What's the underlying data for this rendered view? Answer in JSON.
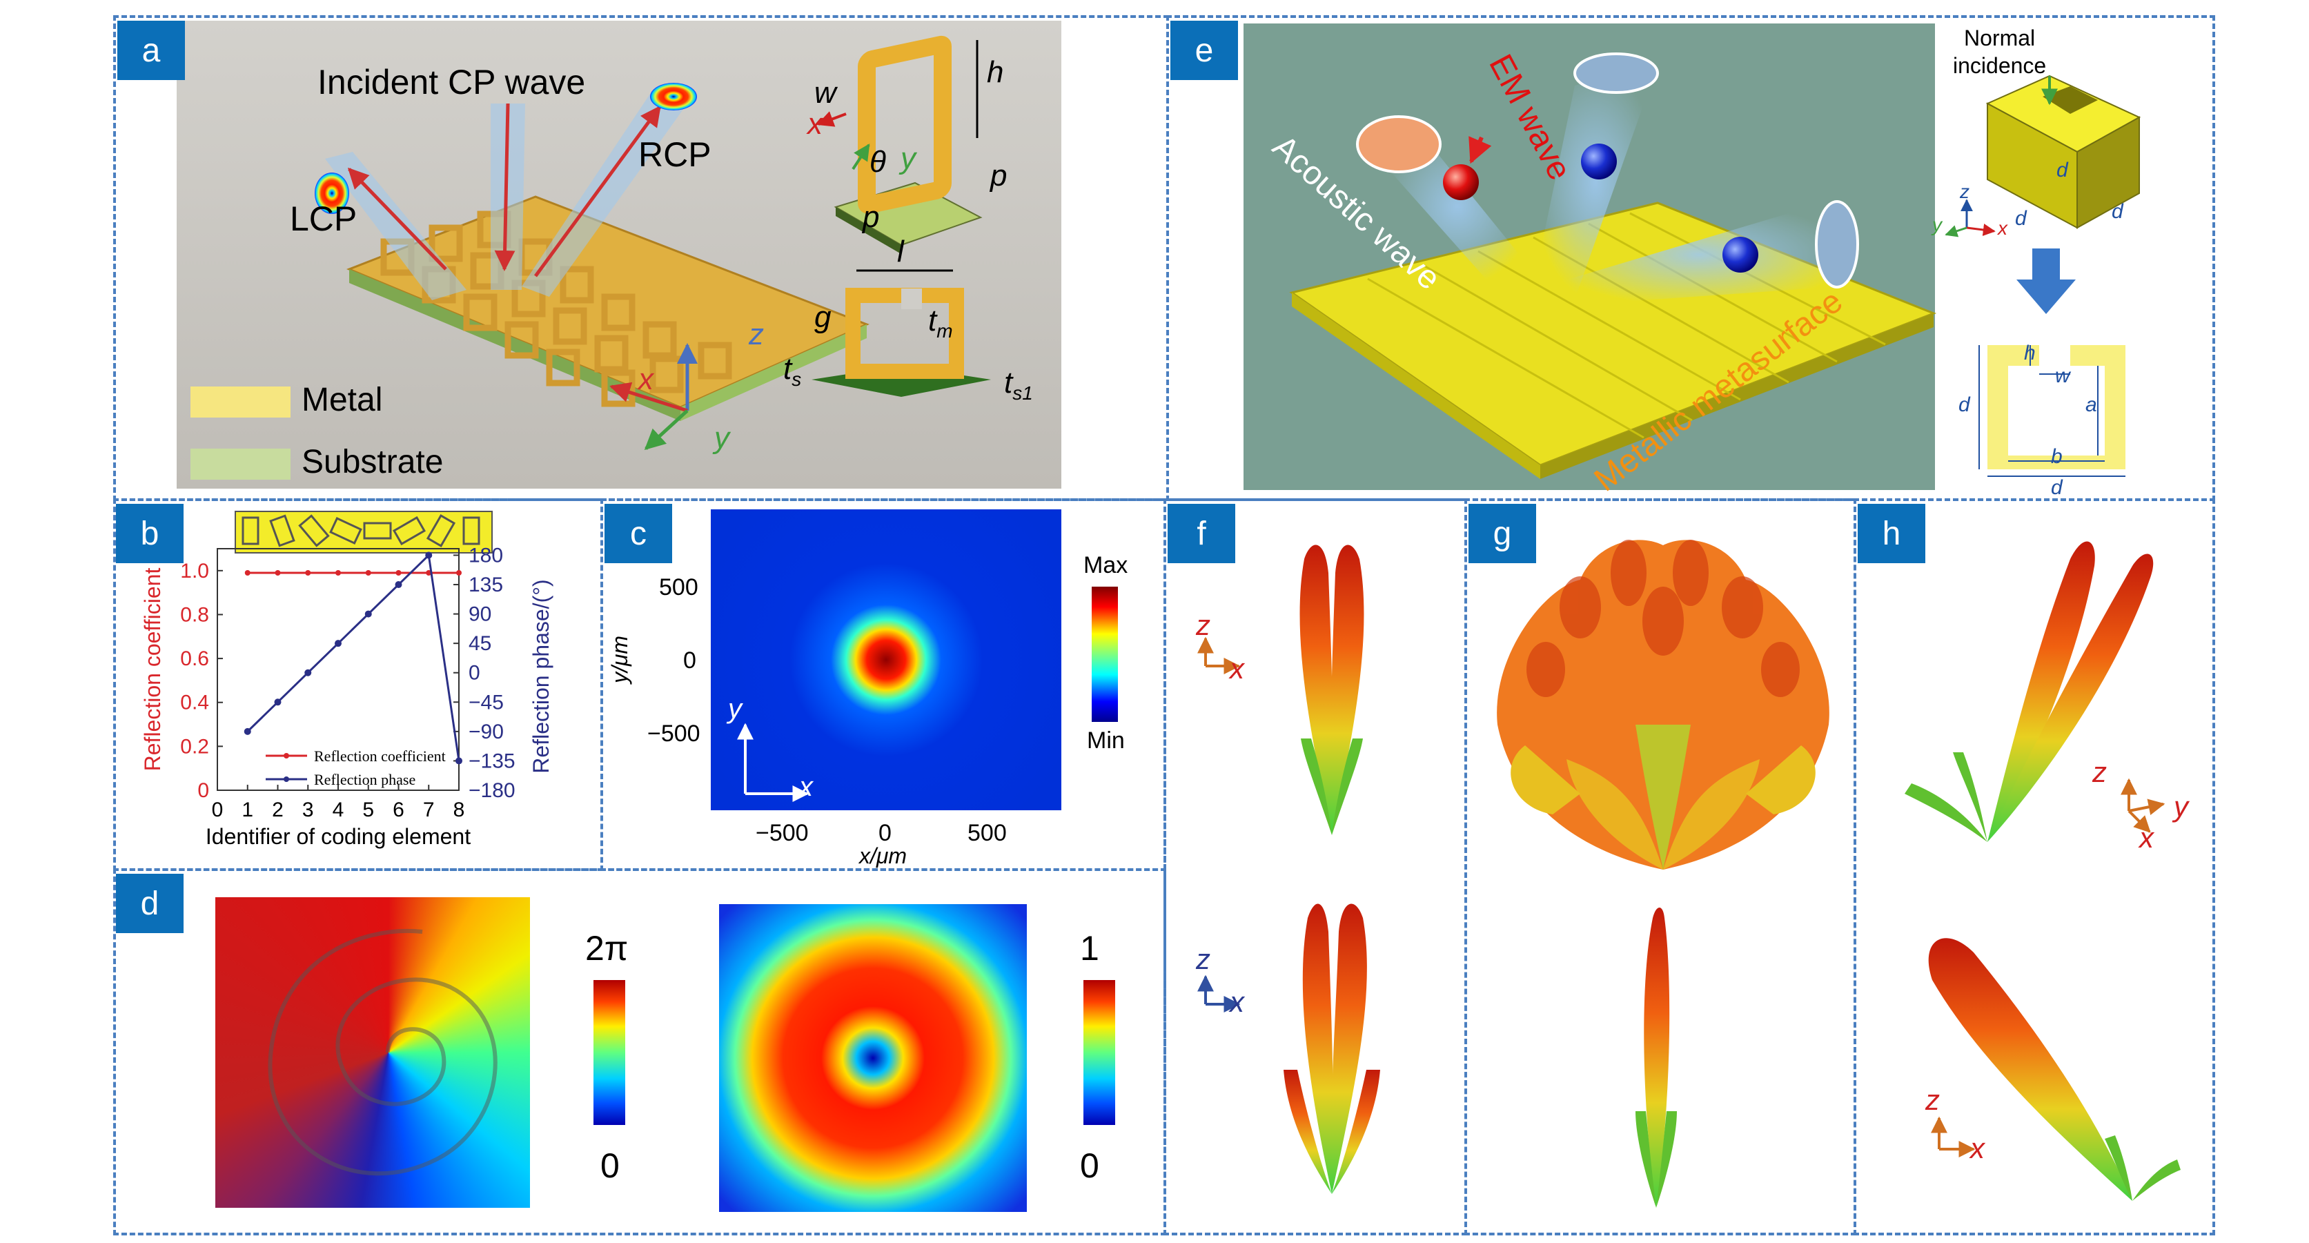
{
  "panel_labels": {
    "a": "a",
    "b": "b",
    "c": "c",
    "d": "d",
    "e": "e",
    "f": "f",
    "g": "g",
    "h": "h"
  },
  "colors": {
    "border": "#4a7fc0",
    "label_bg": "#0b6fb8",
    "coef_red": "#d9262b",
    "phase_blue": "#2a2f86",
    "metal": "#f4e27a",
    "substrate": "#c8dc9e"
  },
  "panel_a": {
    "incident": "Incident CP wave",
    "lcp": "LCP",
    "rcp": "RCP",
    "legend_metal": "Metal",
    "legend_substrate": "Substrate",
    "dims": {
      "w": "w",
      "h": "h",
      "x": "x",
      "theta": "θ",
      "y": "y",
      "p1": "p",
      "p2": "p",
      "l": "l",
      "g": "g",
      "tm": "t",
      "tm_sub": "m",
      "ts": "t",
      "ts_sub": "s",
      "ts1": "t",
      "ts1_sub": "s1"
    },
    "axes": {
      "z": "z",
      "x": "x",
      "y": "y"
    }
  },
  "panel_b": {
    "chart_data": {
      "type": "line",
      "xlabel": "Identifier of coding element",
      "ylabel_left": "Reflection coefficient",
      "ylabel_right": "Reflection phase/(°)",
      "x": [
        1,
        2,
        3,
        4,
        5,
        6,
        7,
        8
      ],
      "series": [
        {
          "name": "Reflection coefficient",
          "axis": "left",
          "values": [
            0.99,
            0.99,
            0.99,
            0.99,
            0.99,
            0.99,
            0.99,
            0.99
          ]
        },
        {
          "name": "Reflection phase",
          "axis": "right",
          "values": [
            -90,
            -45,
            0,
            45,
            90,
            135,
            180,
            -135
          ]
        }
      ],
      "xlim": [
        0,
        8
      ],
      "ylim_left": [
        0,
        1.1
      ],
      "ylim_right": [
        -180,
        190
      ],
      "xticks": [
        "0",
        "1",
        "2",
        "3",
        "4",
        "5",
        "6",
        "7",
        "8"
      ],
      "yticks_left": [
        "0",
        "0.2",
        "0.4",
        "0.6",
        "0.8",
        "1.0"
      ],
      "yticks_right": [
        "180",
        "135",
        "90",
        "45",
        "0",
        "−45",
        "−90",
        "−135",
        "−180"
      ],
      "legend_position": "bottom-center"
    }
  },
  "panel_c": {
    "xticks": [
      "−500",
      "0",
      "500"
    ],
    "yticks": [
      "500",
      "0",
      "−500"
    ],
    "xlabel": "x/μm",
    "ylabel": "y/μm",
    "axis_x": "x",
    "axis_y": "y",
    "cbar_max": "Max",
    "cbar_min": "Min"
  },
  "panel_d": {
    "cbar1_top": "2π",
    "cbar1_bottom": "0",
    "cbar2_top": "1",
    "cbar2_bottom": "0"
  },
  "panel_e": {
    "normal": "Normal\nincidence",
    "em": "EM wave",
    "acoustic": "Acoustic wave",
    "meta": "Metallic metasurface",
    "dims": {
      "d1": "d",
      "d2": "d",
      "d3": "d",
      "z": "z",
      "y": "y",
      "x": "x",
      "h": "h",
      "w": "w",
      "a": "a",
      "b": "b",
      "d4": "d",
      "d5": "d"
    }
  },
  "panel_f": {
    "z1": "z",
    "x1": "x",
    "z2": "z",
    "x2": "x"
  },
  "panel_h": {
    "z1": "z",
    "y1": "y",
    "x1": "x",
    "z2": "z",
    "x2": "x"
  }
}
